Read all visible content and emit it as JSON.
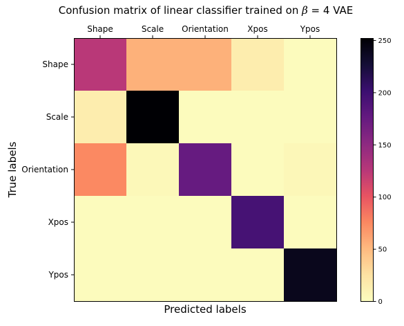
{
  "chart_data": {
    "type": "heatmap",
    "title": {
      "prefix": "Confusion matrix of linear classifier trained on ",
      "symbol": "β",
      "suffix": " = 4 VAE"
    },
    "xlabel": "Predicted labels",
    "ylabel": "True labels",
    "x_categories": [
      "Shape",
      "Scale",
      "Orientation",
      "Xpos",
      "Ypos"
    ],
    "y_categories": [
      "Shape",
      "Scale",
      "Orientation",
      "Xpos",
      "Ypos"
    ],
    "x_tick_position": "top",
    "values": [
      [
        125,
        55,
        55,
        15,
        2
      ],
      [
        15,
        252,
        2,
        2,
        2
      ],
      [
        75,
        5,
        175,
        2,
        6
      ],
      [
        2,
        2,
        2,
        195,
        2
      ],
      [
        2,
        2,
        2,
        2,
        240
      ]
    ],
    "colormap": "magma_r",
    "colorbar": {
      "min": 0,
      "max": 252,
      "ticks": [
        0,
        50,
        100,
        150,
        200,
        250
      ]
    },
    "grid": false
  }
}
